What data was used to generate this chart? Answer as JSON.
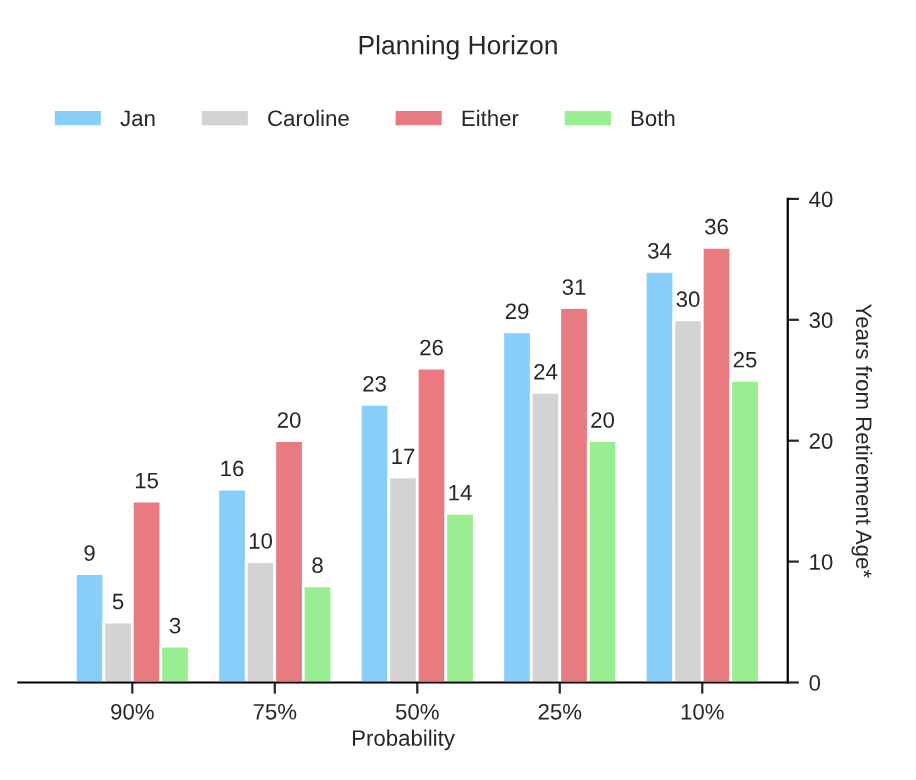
{
  "chart_data": {
    "type": "bar",
    "title": "Planning Horizon",
    "xlabel": "Probability",
    "ylabel": "Years from Retirement Age*",
    "categories": [
      "90%",
      "75%",
      "50%",
      "25%",
      "10%"
    ],
    "series": [
      {
        "name": "Jan",
        "color": "#87cefa",
        "values": [
          9,
          16,
          23,
          29,
          34
        ]
      },
      {
        "name": "Caroline",
        "color": "#d3d3d3",
        "values": [
          5,
          10,
          17,
          24,
          30
        ]
      },
      {
        "name": "Either",
        "color": "#e97a80",
        "values": [
          15,
          20,
          26,
          31,
          36
        ]
      },
      {
        "name": "Both",
        "color": "#98ee90",
        "values": [
          3,
          8,
          14,
          20,
          25
        ]
      }
    ],
    "ylim": [
      0,
      40
    ],
    "yticks": [
      0,
      10,
      20,
      30,
      40
    ],
    "data_labels": true,
    "legend": "top",
    "grid": false
  }
}
